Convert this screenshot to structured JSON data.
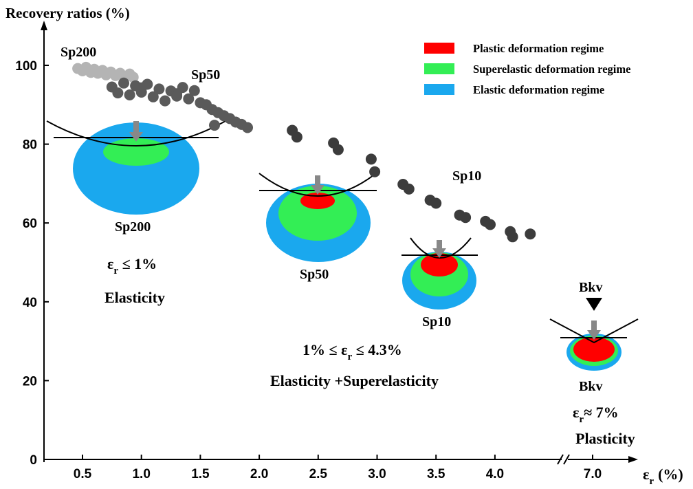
{
  "chart_data": {
    "type": "scatter",
    "ylabel": "Recovery ratios (%)",
    "xlabel_symbol": "ε",
    "xlabel_sub": "r",
    "xlabel_unit": "(%)",
    "ylim": [
      0,
      105
    ],
    "xlim_main": [
      0.25,
      4.4
    ],
    "x_break": true,
    "yticks": [
      "0",
      "20",
      "40",
      "60",
      "80",
      "100"
    ],
    "ytick_values": [
      0,
      20,
      40,
      60,
      80,
      100
    ],
    "xticks": [
      "0.5",
      "1.0",
      "1.5",
      "2.0",
      "2.5",
      "3.0",
      "3.5",
      "4.0",
      "7.0"
    ],
    "xtick_values": [
      0.5,
      1.0,
      1.5,
      2.0,
      2.5,
      3.0,
      3.5,
      4.0,
      7.0
    ],
    "series": [
      {
        "name": "Sp200",
        "color": "#b4b4b4",
        "points": [
          [
            0.46,
            99.2
          ],
          [
            0.5,
            98.6
          ],
          [
            0.53,
            99.5
          ],
          [
            0.57,
            98.2
          ],
          [
            0.6,
            99.0
          ],
          [
            0.63,
            98.0
          ],
          [
            0.67,
            98.7
          ],
          [
            0.7,
            97.6
          ],
          [
            0.74,
            98.3
          ],
          [
            0.78,
            97.4
          ],
          [
            0.82,
            98.0
          ],
          [
            0.86,
            97.2
          ],
          [
            0.9,
            97.8
          ],
          [
            0.93,
            97.0
          ]
        ]
      },
      {
        "name": "Sp50",
        "color": "#5a5a5a",
        "points": [
          [
            0.75,
            94.5
          ],
          [
            0.8,
            93.0
          ],
          [
            0.85,
            95.5
          ],
          [
            0.9,
            92.5
          ],
          [
            0.95,
            94.8
          ],
          [
            1.0,
            93.2
          ],
          [
            1.05,
            95.2
          ],
          [
            1.1,
            92.0
          ],
          [
            1.15,
            94.0
          ],
          [
            1.2,
            91.0
          ],
          [
            1.25,
            93.5
          ],
          [
            1.3,
            92.8
          ],
          [
            1.35,
            94.4
          ],
          [
            1.4,
            91.5
          ],
          [
            1.45,
            93.6
          ],
          [
            1.5,
            90.5
          ],
          [
            1.55,
            90.0
          ],
          [
            1.6,
            88.8
          ],
          [
            1.65,
            88.0
          ],
          [
            1.7,
            87.2
          ],
          [
            1.75,
            86.5
          ],
          [
            1.8,
            85.6
          ],
          [
            1.85,
            85.0
          ],
          [
            1.9,
            84.2
          ],
          [
            1.62,
            84.8
          ],
          [
            1.3,
            92.2
          ],
          [
            1.0,
            94.3
          ]
        ]
      },
      {
        "name": "Sp10",
        "color": "#3c3c3c",
        "points": [
          [
            2.28,
            83.5
          ],
          [
            2.32,
            81.8
          ],
          [
            2.63,
            80.3
          ],
          [
            2.67,
            78.6
          ],
          [
            2.95,
            76.2
          ],
          [
            2.98,
            73.0
          ],
          [
            3.22,
            69.8
          ],
          [
            3.27,
            68.6
          ],
          [
            3.45,
            65.8
          ],
          [
            3.5,
            65.0
          ],
          [
            3.7,
            62.0
          ],
          [
            3.75,
            61.4
          ],
          [
            3.92,
            60.4
          ],
          [
            3.96,
            59.6
          ],
          [
            4.13,
            57.8
          ],
          [
            4.15,
            56.5
          ],
          [
            4.3,
            57.2
          ]
        ]
      }
    ],
    "legend": [
      {
        "label": "Plastic deformation regime",
        "color": "#ff0000"
      },
      {
        "label": "Superelastic deformation regime",
        "color": "#33ee55"
      },
      {
        "label": "Elastic deformation regime",
        "color": "#1aa8ee"
      }
    ],
    "annotations": {
      "sp200_top": "Sp200",
      "sp50_top": "Sp50",
      "sp10_top": "Sp10",
      "sp200_under": "Sp200",
      "sp50_under": "Sp50",
      "sp10_under": "Sp10",
      "bkv_top": "Bkv",
      "bkv_under": "Bkv",
      "regime1_cond_pre": "ε",
      "regime1_cond_sub": "r",
      "regime1_cond_post": " ≤ 1%",
      "regime1_name": "Elasticity",
      "regime2_cond_pre": "1% ≤ ε",
      "regime2_cond_sub": "r",
      "regime2_cond_post": " ≤ 4.3%",
      "regime2_name": "Elasticity +Superelasticity",
      "regime3_cond_pre": "ε",
      "regime3_cond_sub": "r",
      "regime3_cond_post": "≈ 7%",
      "regime3_name": "Plasticity"
    }
  }
}
